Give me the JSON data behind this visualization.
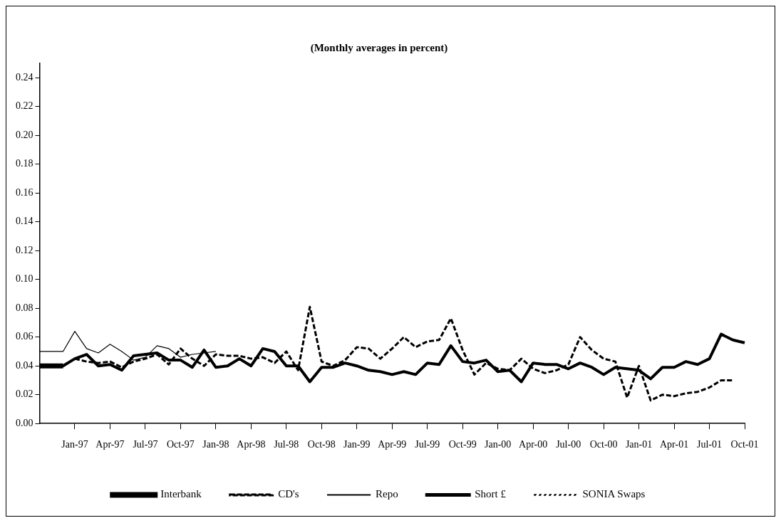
{
  "chart_data": {
    "type": "line",
    "title": "(Monthly averages in percent)",
    "categories": [
      null,
      null,
      null,
      "Jan-97",
      null,
      null,
      "Apr-97",
      null,
      null,
      "Jul-97",
      null,
      null,
      "Oct-97",
      null,
      null,
      "Jan-98",
      null,
      null,
      "Apr-98",
      null,
      null,
      "Jul-98",
      null,
      null,
      "Oct-98",
      null,
      null,
      "Jan-99",
      null,
      null,
      "Apr-99",
      null,
      null,
      "Jul-99",
      null,
      null,
      "Oct-99",
      null,
      null,
      "Jan-00",
      null,
      null,
      "Apr-00",
      null,
      null,
      "Jul-00",
      null,
      null,
      "Oct-00",
      null,
      null,
      "Jan-01",
      null,
      null,
      "Apr-01",
      null,
      null,
      "Jul-01",
      null,
      null,
      "Oct-01"
    ],
    "series": [
      {
        "name": "Interbank",
        "color": "#000000",
        "line_style": "solid",
        "values": [
          0.04,
          0.04,
          0.04,
          null,
          null,
          null,
          null,
          null,
          null,
          null,
          null,
          null,
          null,
          null,
          null,
          null,
          null,
          null,
          null,
          null,
          null,
          null,
          null,
          null,
          null,
          null,
          null,
          null,
          null,
          null,
          null,
          null,
          null,
          null,
          null,
          null,
          null,
          null,
          null,
          null,
          null,
          null,
          null,
          null,
          null,
          null,
          null,
          null,
          null,
          null,
          null,
          null,
          null,
          null,
          null,
          null,
          null,
          null,
          null,
          null,
          null
        ]
      },
      {
        "name": "CD's",
        "color": "#000000",
        "line_style": "dashed",
        "values": [
          null,
          null,
          null,
          0.045,
          0.043,
          0.042,
          0.043,
          0.039,
          0.043,
          0.045,
          0.048,
          0.041,
          0.052,
          0.045,
          0.04,
          0.048,
          0.047,
          0.047,
          0.045,
          0.046,
          0.042,
          0.05,
          0.037,
          0.081,
          0.043,
          0.04,
          0.044,
          0.053,
          0.052,
          0.045,
          0.052,
          0.06,
          0.053,
          0.057,
          0.058,
          0.073,
          0.051,
          0.034,
          0.042,
          0.038,
          0.037,
          0.045,
          0.038,
          0.035,
          0.037,
          0.041,
          0.06,
          0.051,
          0.045,
          0.043,
          0.018,
          0.04,
          0.016,
          0.02,
          0.019,
          0.021,
          0.022,
          0.025,
          0.03,
          0.03,
          null
        ]
      },
      {
        "name": "Repo",
        "color": "#000000",
        "line_style": "solid",
        "values": [
          0.05,
          0.05,
          0.05,
          0.064,
          0.052,
          0.049,
          0.055,
          0.05,
          0.044,
          0.046,
          0.054,
          0.052,
          0.046,
          0.048,
          0.049,
          0.05,
          null,
          null,
          null,
          null,
          null,
          null,
          null,
          null,
          null,
          null,
          null,
          null,
          null,
          null,
          null,
          null,
          null,
          null,
          null,
          null,
          null,
          null,
          null,
          null,
          null,
          null,
          null,
          null,
          null,
          null,
          null,
          null,
          null,
          null,
          null,
          null,
          null,
          null,
          null,
          null,
          null,
          null,
          null,
          null,
          null
        ]
      },
      {
        "name": "Short £",
        "color": "#000000",
        "line_style": "solid",
        "values": [
          0.04,
          0.04,
          0.04,
          0.045,
          0.048,
          0.04,
          0.041,
          0.037,
          0.047,
          0.048,
          0.049,
          0.044,
          0.044,
          0.039,
          0.051,
          0.039,
          0.04,
          0.045,
          0.04,
          0.052,
          0.05,
          0.04,
          0.04,
          0.029,
          0.039,
          0.039,
          0.042,
          0.04,
          0.037,
          0.036,
          0.034,
          0.036,
          0.034,
          0.042,
          0.041,
          0.054,
          0.043,
          0.042,
          0.044,
          0.036,
          0.037,
          0.029,
          0.042,
          0.041,
          0.041,
          0.038,
          0.042,
          0.039,
          0.034,
          0.039,
          0.038,
          0.037,
          0.031,
          0.039,
          0.039,
          0.043,
          0.041,
          0.045,
          0.062,
          0.058,
          0.056
        ]
      },
      {
        "name": "SONIA Swaps",
        "color": "#000000",
        "line_style": "dotted",
        "values": [
          null,
          null,
          null,
          null,
          null,
          null,
          null,
          null,
          null,
          null,
          null,
          null,
          null,
          null,
          null,
          null,
          null,
          null,
          null,
          null,
          null,
          null,
          null,
          null,
          null,
          null,
          null,
          null,
          null,
          null,
          null,
          null,
          null,
          null,
          null,
          null,
          null,
          null,
          null,
          null,
          null,
          null,
          null,
          null,
          null,
          null,
          null,
          null,
          null,
          null,
          null,
          null,
          null,
          null,
          null,
          null,
          null,
          null,
          null,
          null,
          null
        ]
      }
    ],
    "ylim": [
      0,
      0.25
    ],
    "yticks": [
      {
        "value": 0,
        "label": "0.00"
      },
      {
        "value": 0.02,
        "label": "0.02"
      },
      {
        "value": 0.04,
        "label": "0.04"
      },
      {
        "value": 0.06,
        "label": "0.06"
      },
      {
        "value": 0.08,
        "label": "0.08"
      },
      {
        "value": 0.1,
        "label": "0.10"
      },
      {
        "value": 0.12,
        "label": "0.12"
      },
      {
        "value": 0.14,
        "label": "0.14"
      },
      {
        "value": 0.16,
        "label": "0.16"
      },
      {
        "value": 0.18,
        "label": "0.18"
      },
      {
        "value": 0.2,
        "label": "0.20"
      },
      {
        "value": 0.22,
        "label": "0.22"
      },
      {
        "value": 0.24,
        "label": "0.24"
      }
    ],
    "grid": false,
    "legend": "bottom",
    "marker": "none"
  }
}
